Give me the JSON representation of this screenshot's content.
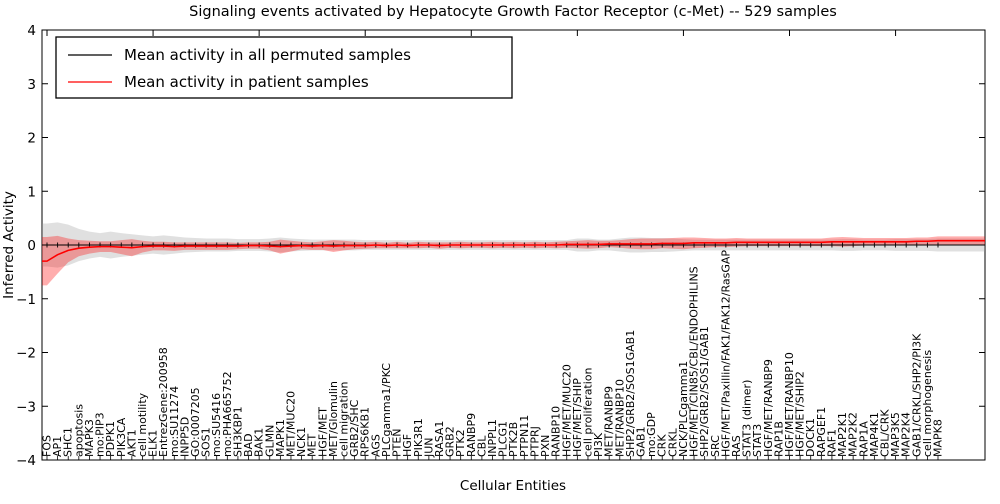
{
  "title": "Signaling events activated by Hepatocyte Growth Factor Receptor (c-Met) -- 529 samples",
  "legend": {
    "items": [
      {
        "label": "Mean activity in all permuted samples",
        "color": "#000000"
      },
      {
        "label": "Mean activity in patient samples",
        "color": "#ff0000"
      }
    ]
  },
  "axes": {
    "ylabel": "Inferred Activity",
    "xlabel": "Cellular Entities",
    "yticks": [
      4,
      3,
      2,
      1,
      0,
      -1,
      -2,
      -3,
      -4
    ],
    "ylim": [
      -4,
      4
    ]
  },
  "chart_data": {
    "type": "line",
    "title": "Signaling events activated by Hepatocyte Growth Factor Receptor (c-Met) -- 529 samples",
    "xlabel": "Cellular Entities",
    "ylabel": "Inferred Activity",
    "ylim": [
      -4,
      4
    ],
    "grid": false,
    "legend_position": "upper left",
    "x_labels": [
      "FOS",
      "AP1",
      "SHC1",
      "apoptosis",
      "MAPK3",
      "mo:PIP3",
      "PDPK1",
      "PIK3CA",
      "AKT1",
      "cell motility",
      "ELK1",
      "EntrezGene:200958",
      "mo:SU11274",
      "INPP5D",
      "GO:0007205",
      "SOS1",
      "mo:SU5416",
      "mo:PHA665752",
      "SH3KBP1",
      "BAD",
      "BAK1",
      "GLMN",
      "MAPK1",
      "MET/MUC20",
      "NCK1",
      "MET",
      "HGF/MET",
      "MET/Glomulin",
      "cell migration",
      "GRB2/SHC",
      "RPS6KB1",
      "AGS",
      "PLCgamma1/PKC",
      "PTEN",
      "HGF",
      "PIK3R1",
      "JUN",
      "RASA1",
      "GRB2",
      "PTK2",
      "RANBP9",
      "CBL",
      "INPPL1",
      "PLCG1",
      "PTK2B",
      "PTPN11",
      "PTPRJ",
      "PXN",
      "RANBP10",
      "HGF/MET/MUC20",
      "HGF/MET/SHIP",
      "cell proliferation",
      "PI3K",
      "MET/RANBP9",
      "MET/RANBP10",
      "SHP2/GRB2/SOS1GAB1",
      "GAB1",
      "mo:GDP",
      "CRK",
      "CRKL",
      "NCK/PLCgamma1",
      "HGF/MET/CIN85/CBL/ENDOPHILINS",
      "SHP2/GRB2/SOS1/GAB1",
      "SRC",
      "HGF/MET/Paxillin/FAK1/FAK12/RasGAP",
      "RAS",
      "STAT3 (dimer)",
      "STAT3",
      "HGF/MET/RANBP9",
      "RAP1B",
      "HGF/MET/RANBP10",
      "HGF/MET/SHIP2",
      "DOCK1",
      "RAPGEF1",
      "RAF1",
      "MAP2K1",
      "MAP2K2",
      "RAP1A",
      "MAP4K1",
      "CBL/CRK",
      "MAP3K5",
      "MAP2K4",
      "GAB1/CRKL/SHP2/PI3K",
      "cell morphogenesis",
      "MAPK8"
    ],
    "series": [
      {
        "name": "Mean activity in all permuted samples",
        "color": "#000000",
        "band_color": "#999999",
        "values": [
          0,
          0,
          0,
          0,
          0,
          0,
          0,
          0,
          0,
          0,
          0,
          0,
          0,
          0,
          0,
          0,
          0,
          0,
          0,
          0,
          0,
          0,
          0,
          0,
          0,
          0,
          0,
          0,
          0,
          0,
          0,
          0,
          0,
          0,
          0,
          0,
          0,
          0,
          0,
          0,
          0,
          0,
          0,
          0,
          0,
          0,
          0,
          0,
          0,
          0,
          0,
          0,
          0,
          0,
          0,
          0,
          0,
          0,
          0,
          0,
          0,
          0,
          0,
          0,
          0,
          0,
          0,
          0,
          0,
          0,
          0,
          0,
          0,
          0,
          0,
          0,
          0,
          0,
          0,
          0,
          0,
          0,
          0,
          0,
          0
        ],
        "band": [
          0.4,
          0.42,
          0.38,
          0.3,
          0.25,
          0.22,
          0.25,
          0.22,
          0.2,
          0.18,
          0.16,
          0.18,
          0.16,
          0.14,
          0.13,
          0.12,
          0.12,
          0.12,
          0.11,
          0.11,
          0.11,
          0.12,
          0.14,
          0.12,
          0.11,
          0.1,
          0.1,
          0.1,
          0.1,
          0.1,
          0.09,
          0.09,
          0.09,
          0.09,
          0.09,
          0.09,
          0.09,
          0.09,
          0.09,
          0.09,
          0.09,
          0.09,
          0.09,
          0.09,
          0.09,
          0.09,
          0.09,
          0.09,
          0.09,
          0.09,
          0.12,
          0.12,
          0.1,
          0.1,
          0.12,
          0.14,
          0.14,
          0.13,
          0.13,
          0.12,
          0.11,
          0.1,
          0.1,
          0.1,
          0.1,
          0.1,
          0.1,
          0.1,
          0.1,
          0.1,
          0.1,
          0.1,
          0.1,
          0.1,
          0.1,
          0.11,
          0.11,
          0.1,
          0.1,
          0.1,
          0.11,
          0.11,
          0.11,
          0.11,
          0.12
        ]
      },
      {
        "name": "Mean activity in patient samples",
        "color": "#ff0000",
        "band_color": "#ff0000",
        "values": [
          -0.3,
          -0.18,
          -0.1,
          -0.06,
          -0.04,
          -0.03,
          -0.03,
          -0.04,
          -0.05,
          -0.03,
          -0.02,
          -0.02,
          -0.03,
          -0.02,
          -0.02,
          -0.02,
          -0.02,
          -0.02,
          -0.02,
          -0.01,
          -0.01,
          -0.02,
          -0.03,
          -0.02,
          -0.01,
          -0.02,
          -0.01,
          -0.02,
          -0.01,
          -0.01,
          -0.01,
          0.0,
          -0.01,
          0.0,
          -0.01,
          0.0,
          0.0,
          -0.01,
          0.0,
          0.0,
          0.0,
          0.0,
          0.0,
          0.0,
          0.0,
          0.0,
          0.0,
          0.0,
          0.0,
          0.01,
          0.01,
          0.01,
          0.01,
          0.02,
          0.02,
          0.02,
          0.02,
          0.02,
          0.03,
          0.03,
          0.03,
          0.04,
          0.04,
          0.04,
          0.04,
          0.05,
          0.05,
          0.05,
          0.05,
          0.05,
          0.05,
          0.05,
          0.05,
          0.05,
          0.06,
          0.06,
          0.06,
          0.06,
          0.06,
          0.06,
          0.06,
          0.06,
          0.07,
          0.07,
          0.08
        ],
        "band": [
          0.45,
          0.35,
          0.22,
          0.15,
          0.12,
          0.1,
          0.1,
          0.13,
          0.16,
          0.11,
          0.08,
          0.08,
          0.08,
          0.07,
          0.07,
          0.07,
          0.07,
          0.07,
          0.06,
          0.06,
          0.06,
          0.08,
          0.13,
          0.1,
          0.07,
          0.07,
          0.08,
          0.11,
          0.09,
          0.07,
          0.06,
          0.06,
          0.05,
          0.06,
          0.05,
          0.06,
          0.05,
          0.06,
          0.05,
          0.06,
          0.05,
          0.05,
          0.06,
          0.05,
          0.06,
          0.05,
          0.06,
          0.05,
          0.06,
          0.06,
          0.07,
          0.08,
          0.07,
          0.06,
          0.07,
          0.09,
          0.1,
          0.1,
          0.09,
          0.1,
          0.11,
          0.1,
          0.09,
          0.08,
          0.08,
          0.08,
          0.07,
          0.07,
          0.07,
          0.07,
          0.07,
          0.07,
          0.07,
          0.07,
          0.08,
          0.09,
          0.08,
          0.07,
          0.07,
          0.07,
          0.07,
          0.07,
          0.07,
          0.07,
          0.08
        ]
      }
    ]
  }
}
